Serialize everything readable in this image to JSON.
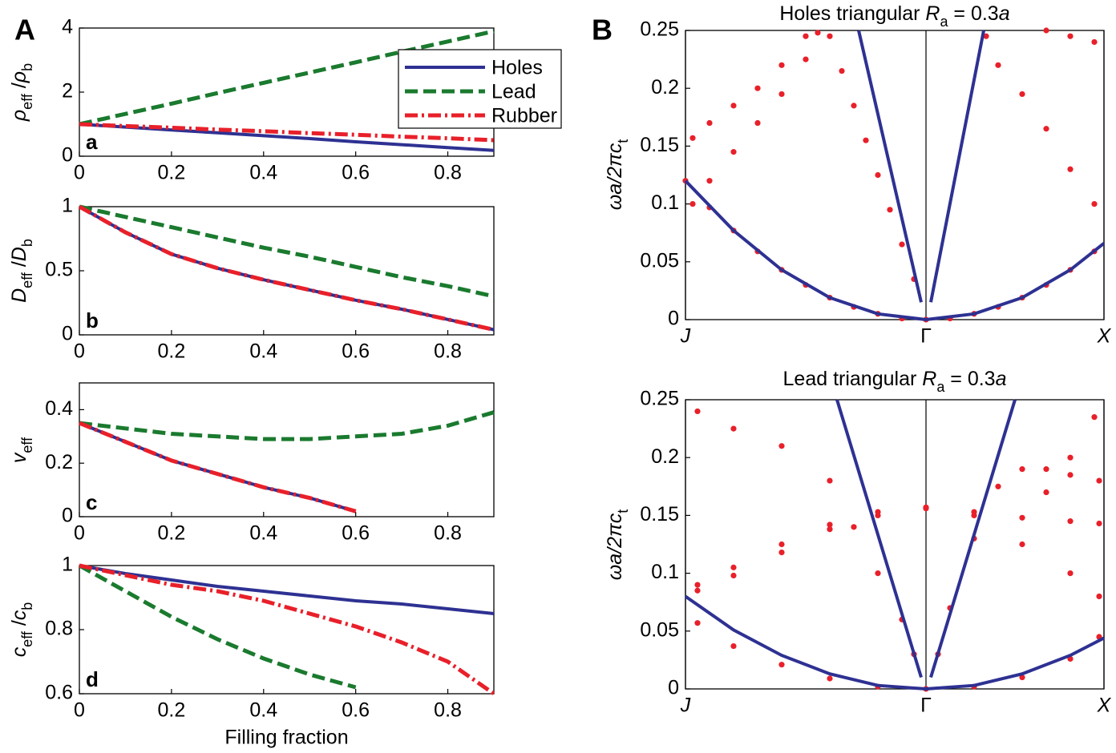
{
  "figure_labels": [
    "A",
    "B"
  ],
  "chart_data": [
    {
      "type": "line",
      "panel_label": "a",
      "ylabel": [
        "ρ",
        "eff",
        " /",
        "ρ",
        "b"
      ],
      "xlim": [
        0,
        0.9
      ],
      "ylim": [
        0,
        4
      ],
      "xticks": [
        0,
        0.2,
        0.4,
        0.6,
        0.8
      ],
      "yticks": [
        0,
        2,
        4
      ],
      "legend": "upper right",
      "x": [
        0,
        0.1,
        0.2,
        0.3,
        0.4,
        0.5,
        0.6,
        0.7,
        0.8,
        0.9
      ],
      "series": [
        {
          "name": "Holes",
          "color": "#2e3192",
          "style": "solid",
          "values": [
            1,
            0.91,
            0.82,
            0.73,
            0.64,
            0.55,
            0.45,
            0.36,
            0.27,
            0.18
          ]
        },
        {
          "name": "Lead",
          "color": "#1a7a2e",
          "style": "dashed",
          "values": [
            1,
            1.32,
            1.64,
            1.97,
            2.29,
            2.61,
            2.93,
            3.26,
            3.58,
            3.9
          ]
        },
        {
          "name": "Rubber",
          "color": "#e8202a",
          "style": "dashdot",
          "values": [
            1,
            0.94,
            0.89,
            0.83,
            0.78,
            0.72,
            0.67,
            0.61,
            0.56,
            0.5
          ]
        }
      ]
    },
    {
      "type": "line",
      "panel_label": "b",
      "ylabel": [
        "D",
        "eff",
        " /",
        "D",
        "b"
      ],
      "xlim": [
        0,
        0.9
      ],
      "ylim": [
        0,
        1
      ],
      "xticks": [
        0,
        0.2,
        0.4,
        0.6,
        0.8
      ],
      "yticks": [
        0,
        0.5,
        1
      ],
      "x": [
        0,
        0.1,
        0.2,
        0.3,
        0.4,
        0.5,
        0.6,
        0.7,
        0.8,
        0.9
      ],
      "series": [
        {
          "color": "#2e3192",
          "style": "solid",
          "values": [
            1,
            0.8,
            0.63,
            0.52,
            0.43,
            0.35,
            0.27,
            0.2,
            0.12,
            0.04
          ]
        },
        {
          "color": "#1a7a2e",
          "style": "dashed",
          "values": [
            1,
            0.92,
            0.84,
            0.76,
            0.68,
            0.61,
            0.53,
            0.45,
            0.38,
            0.3
          ]
        },
        {
          "color": "#e8202a",
          "style": "dashdot",
          "values": [
            1,
            0.8,
            0.63,
            0.52,
            0.43,
            0.35,
            0.27,
            0.2,
            0.12,
            0.04
          ]
        }
      ]
    },
    {
      "type": "line",
      "panel_label": "c",
      "ylabel": [
        "v",
        "eff"
      ],
      "xlim": [
        0,
        0.9
      ],
      "ylim": [
        0,
        0.5
      ],
      "xticks": [
        0,
        0.2,
        0.4,
        0.6,
        0.8
      ],
      "yticks": [
        0,
        0.2,
        0.4
      ],
      "x": [
        0,
        0.1,
        0.2,
        0.3,
        0.4,
        0.5,
        0.6,
        0.7,
        0.8,
        0.9
      ],
      "series": [
        {
          "color": "#2e3192",
          "style": "solid",
          "values": [
            0.35,
            0.28,
            0.21,
            0.16,
            0.11,
            0.07,
            0.02,
            null,
            null,
            null
          ]
        },
        {
          "color": "#1a7a2e",
          "style": "dashed",
          "values": [
            0.35,
            0.33,
            0.31,
            0.3,
            0.29,
            0.29,
            0.3,
            0.31,
            0.34,
            0.39
          ]
        },
        {
          "color": "#e8202a",
          "style": "dashdot",
          "values": [
            0.35,
            0.28,
            0.21,
            0.16,
            0.11,
            0.07,
            0.02,
            null,
            null,
            null
          ]
        }
      ]
    },
    {
      "type": "line",
      "panel_label": "d",
      "ylabel": [
        "c",
        "eff",
        " /",
        "c",
        "b"
      ],
      "xlabel": "Filling fraction",
      "xlim": [
        0,
        0.9
      ],
      "ylim": [
        0.6,
        1
      ],
      "xticks": [
        0,
        0.2,
        0.4,
        0.6,
        0.8
      ],
      "yticks": [
        0.6,
        0.8,
        1
      ],
      "x": [
        0,
        0.1,
        0.2,
        0.3,
        0.4,
        0.5,
        0.6,
        0.7,
        0.8,
        0.9
      ],
      "series": [
        {
          "color": "#2e3192",
          "style": "solid",
          "values": [
            1,
            0.975,
            0.955,
            0.935,
            0.92,
            0.905,
            0.89,
            0.88,
            0.865,
            0.85
          ]
        },
        {
          "color": "#1a7a2e",
          "style": "dashed",
          "values": [
            1,
            0.92,
            0.84,
            0.77,
            0.71,
            0.66,
            0.62,
            null,
            null,
            null
          ]
        },
        {
          "color": "#e8202a",
          "style": "dashdot",
          "values": [
            1,
            0.97,
            0.94,
            0.92,
            0.89,
            0.85,
            0.81,
            0.76,
            0.7,
            0.6
          ]
        }
      ]
    },
    {
      "type": "line",
      "title": [
        "Holes triangular ",
        "R",
        "a",
        " = 0.3",
        "a"
      ],
      "ylabel": [
        "ωa/2πc",
        "t"
      ],
      "xlim": [
        0,
        1.74
      ],
      "ylim": [
        0,
        0.25
      ],
      "grid_x": true,
      "xticks": [
        {
          "value": 0,
          "label": "J"
        },
        {
          "value": 1,
          "label": "Γ"
        },
        {
          "value": 1.74,
          "label": "X"
        }
      ],
      "yticks": [
        0,
        0.05,
        0.1,
        0.15,
        0.2,
        0.25
      ],
      "series": [
        {
          "color": "#e8202a",
          "style": "dots",
          "x": [
            0,
            0.1,
            0.2,
            0.3,
            0.4,
            0.5,
            0.6,
            0.7,
            0.8,
            0.9,
            1,
            1.1,
            1.2,
            1.3,
            1.4,
            1.5,
            1.6,
            1.7
          ],
          "values": [
            0.12,
            0.097,
            0.077,
            0.059,
            0.043,
            0.03,
            0.019,
            0.011,
            0.005,
            0.001,
            0,
            0.001,
            0.005,
            0.011,
            0.019,
            0.03,
            0.043,
            0.059
          ]
        },
        {
          "color": "#e8202a",
          "style": "dots",
          "x": [
            0.03,
            0.1,
            0.2,
            0.3,
            0.4,
            0.5
          ],
          "values": [
            0.157,
            0.17,
            0.185,
            0.2,
            0.22,
            0.245
          ]
        },
        {
          "color": "#e8202a",
          "style": "dots",
          "x": [
            0.03,
            0.1,
            0.2,
            0.3,
            0.4,
            0.5,
            0.55
          ],
          "values": [
            0.1,
            0.12,
            0.145,
            0.17,
            0.195,
            0.225,
            0.248
          ]
        },
        {
          "color": "#e8202a",
          "style": "dots",
          "x": [
            0.6,
            0.65,
            0.7,
            0.75,
            0.8,
            0.85,
            0.9,
            0.95
          ],
          "values": [
            0.245,
            0.215,
            0.185,
            0.155,
            0.125,
            0.095,
            0.065,
            0.035
          ]
        },
        {
          "color": "#e8202a",
          "style": "dots",
          "x": [
            1.25,
            1.3,
            1.4,
            1.5,
            1.6,
            1.7
          ],
          "values": [
            0.245,
            0.22,
            0.195,
            0.165,
            0.13,
            0.1
          ]
        },
        {
          "color": "#e8202a",
          "style": "dots",
          "x": [
            1.5,
            1.6,
            1.7
          ],
          "values": [
            0.25,
            0.245,
            0.24
          ]
        },
        {
          "color": "#2e3192",
          "style": "solid",
          "x": [
            0,
            0.2,
            0.4,
            0.6,
            0.8,
            1,
            1.2,
            1.4,
            1.6,
            1.74
          ],
          "values": [
            0.12,
            0.077,
            0.043,
            0.019,
            0.005,
            0,
            0.005,
            0.019,
            0.043,
            0.066
          ]
        },
        {
          "color": "#2e3192",
          "style": "solid",
          "x": [
            0.72,
            0.98
          ],
          "values": [
            0.25,
            0.015
          ]
        },
        {
          "color": "#2e3192",
          "style": "solid",
          "x": [
            1.02,
            1.24
          ],
          "values": [
            0.015,
            0.25
          ]
        }
      ]
    },
    {
      "type": "line",
      "title": [
        "Lead triangular ",
        "R",
        "a",
        " = 0.3",
        "a"
      ],
      "ylabel": [
        "ωa/2πc",
        "t"
      ],
      "xlim": [
        0,
        1.74
      ],
      "ylim": [
        0,
        0.25
      ],
      "grid_x": true,
      "xticks": [
        {
          "value": 0,
          "label": "J"
        },
        {
          "value": 1,
          "label": "Γ"
        },
        {
          "value": 1.74,
          "label": "X"
        }
      ],
      "yticks": [
        0,
        0.05,
        0.1,
        0.15,
        0.2,
        0.25
      ],
      "series": [
        {
          "color": "#e8202a",
          "style": "dots",
          "x": [
            0.05,
            0.2,
            0.4,
            0.6,
            0.8,
            1,
            1.2,
            1.4,
            1.6,
            1.72
          ],
          "values": [
            0.057,
            0.037,
            0.021,
            0.009,
            0.002,
            0,
            0.002,
            0.01,
            0.026,
            0.045
          ]
        },
        {
          "color": "#e8202a",
          "style": "dots",
          "x": [
            0.05,
            0.2,
            0.4,
            0.6,
            0.7,
            0.8,
            0.9,
            0.95
          ],
          "values": [
            0.24,
            0.225,
            0.21,
            0.18,
            0.14,
            0.1,
            0.06,
            0.03
          ]
        },
        {
          "color": "#e8202a",
          "style": "dots",
          "x": [
            0.05,
            0.2,
            0.4,
            0.6,
            0.8,
            1,
            1.2,
            1.4,
            1.6,
            1.72
          ],
          "values": [
            0.09,
            0.105,
            0.125,
            0.142,
            0.153,
            0.157,
            0.153,
            0.148,
            0.145,
            0.143
          ]
        },
        {
          "color": "#e8202a",
          "style": "dots",
          "x": [
            0.05,
            0.2,
            0.4,
            0.6,
            0.8,
            1,
            1.2,
            1.4,
            1.6,
            1.72
          ],
          "values": [
            0.085,
            0.098,
            0.118,
            0.138,
            0.15,
            0.156,
            0.15,
            0.125,
            0.1,
            0.08
          ]
        },
        {
          "color": "#e8202a",
          "style": "dots",
          "x": [
            1.05,
            1.1,
            1.2,
            1.3,
            1.4,
            1.5,
            1.6,
            1.72
          ],
          "values": [
            0.03,
            0.07,
            0.13,
            0.175,
            0.19,
            0.19,
            0.185,
            0.18
          ]
        },
        {
          "color": "#e8202a",
          "style": "dots",
          "x": [
            1.5,
            1.6,
            1.7
          ],
          "values": [
            0.17,
            0.2,
            0.235
          ]
        },
        {
          "color": "#2e3192",
          "style": "solid",
          "x": [
            0,
            0.2,
            0.4,
            0.6,
            0.8,
            1,
            1.2,
            1.4,
            1.6,
            1.74
          ],
          "values": [
            0.08,
            0.051,
            0.029,
            0.013,
            0.003,
            0,
            0.003,
            0.013,
            0.029,
            0.044
          ]
        },
        {
          "color": "#2e3192",
          "style": "solid",
          "x": [
            0.63,
            0.98
          ],
          "values": [
            0.25,
            0.01
          ]
        },
        {
          "color": "#2e3192",
          "style": "solid",
          "x": [
            1.02,
            1.37
          ],
          "values": [
            0.01,
            0.25
          ]
        }
      ]
    }
  ]
}
